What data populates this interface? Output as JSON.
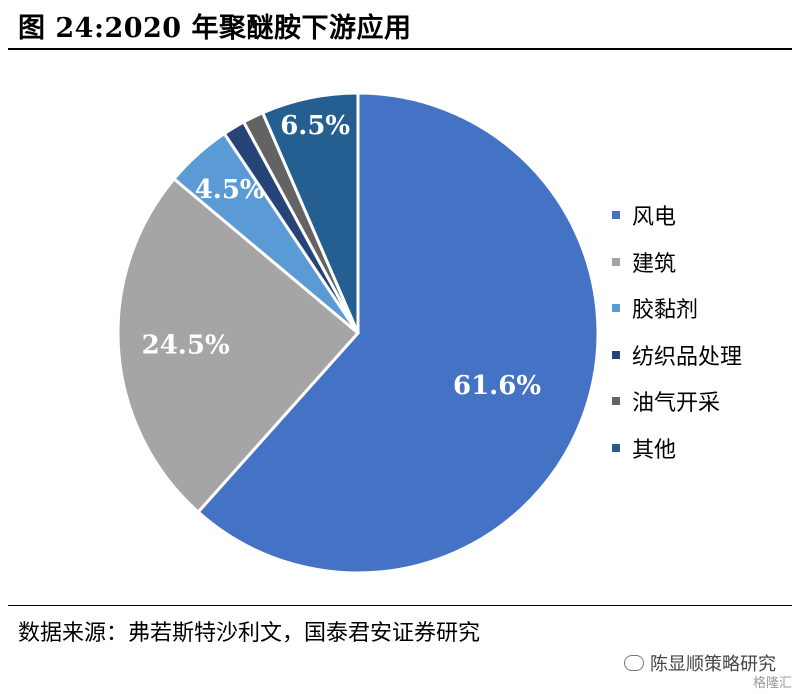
{
  "title": "图 24:2020 年聚醚胺下游应用",
  "source": "数据来源：弗若斯特沙利文，国泰君安证券研究",
  "watermark": {
    "account": "陈显顺策略研究",
    "tag": "格隆汇"
  },
  "chart_data": {
    "type": "pie",
    "title": "图 24:2020 年聚醚胺下游应用",
    "legend_position": "right",
    "start_angle_deg": 0,
    "direction": "clockwise",
    "slices": [
      {
        "label": "风电",
        "value": 61.6,
        "data_label": "61.6%",
        "color": "#4472C4"
      },
      {
        "label": "建筑",
        "value": 24.5,
        "data_label": "24.5%",
        "color": "#A5A5A5"
      },
      {
        "label": "胶黏剂",
        "value": 4.5,
        "data_label": "4.5%",
        "color": "#5B9BD5"
      },
      {
        "label": "纺织品处理",
        "value": 1.5,
        "data_label": "",
        "color": "#264478"
      },
      {
        "label": "油气开采",
        "value": 1.4,
        "data_label": "",
        "color": "#636363"
      },
      {
        "label": "其他",
        "value": 6.5,
        "data_label": "6.5%",
        "color": "#255E91"
      }
    ]
  }
}
